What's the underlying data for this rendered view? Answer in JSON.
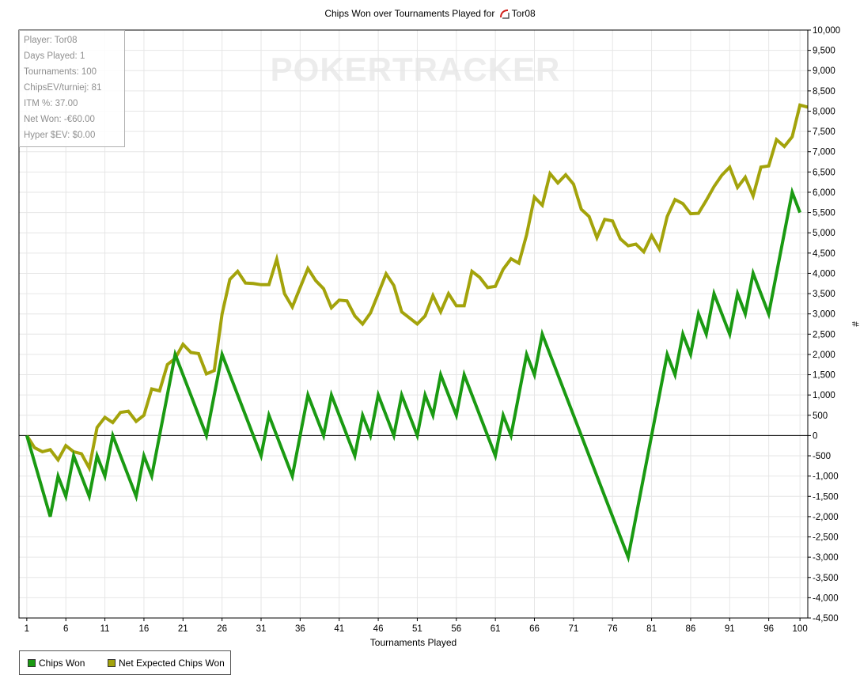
{
  "title": "Chips Won over Tournaments Played for",
  "player_name": "Tor08",
  "watermark": "POKERTRACKER",
  "stats": [
    "Player: Tor08",
    "Days Played: 1",
    "Tournaments: 100",
    "ChipsEV/turniej: 81",
    "ITM %: 37.00",
    "Net Won: -€60.00",
    "Hyper $EV: $0.00"
  ],
  "colors": {
    "chips_won": "#1a9a12",
    "net_expected": "#a3a30b",
    "grid": "#e6e6e6",
    "zero_line": "#000000"
  },
  "chart_data": {
    "type": "line",
    "title": "Chips Won over Tournaments Played for Tor08",
    "xlabel": "Tournaments Played",
    "ylabel": "#",
    "xlim": [
      0,
      101
    ],
    "ylim": [
      -4500,
      10000
    ],
    "x_ticks": [
      1,
      6,
      11,
      16,
      21,
      26,
      31,
      36,
      41,
      46,
      51,
      56,
      61,
      66,
      71,
      76,
      81,
      86,
      91,
      96,
      100
    ],
    "y_ticks": [
      10000,
      9500,
      9000,
      8500,
      8000,
      7500,
      7000,
      6500,
      6000,
      5500,
      5000,
      4500,
      4000,
      3500,
      3000,
      2500,
      2000,
      1500,
      1000,
      500,
      0,
      -500,
      -1000,
      -1500,
      -2000,
      -2500,
      -3000,
      -3500,
      -4000,
      -4500
    ],
    "y_tick_labels": [
      "10,000",
      "9,500",
      "9,000",
      "8,500",
      "8,000",
      "7,500",
      "7,000",
      "6,500",
      "6,000",
      "5,500",
      "5,000",
      "4,500",
      "4,000",
      "3,500",
      "3,000",
      "2,500",
      "2,000",
      "1,500",
      "1,000",
      "500",
      "0",
      "-500",
      "-1,000",
      "-1,500",
      "-2,000",
      "-2,500",
      "-3,000",
      "-3,500",
      "-4,000",
      "-4,500"
    ],
    "grid": true,
    "legend_position": "bottom-left",
    "series": [
      {
        "name": "Chips Won",
        "color": "#1a9a12",
        "points": [
          [
            1,
            0
          ],
          [
            4,
            -2000
          ],
          [
            5,
            -1000
          ],
          [
            6,
            -1500
          ],
          [
            7,
            -500
          ],
          [
            9,
            -1500
          ],
          [
            10,
            -500
          ],
          [
            11,
            -1000
          ],
          [
            12,
            0
          ],
          [
            15,
            -1500
          ],
          [
            16,
            -500
          ],
          [
            17,
            -1000
          ],
          [
            20,
            2000
          ],
          [
            24,
            0
          ],
          [
            26,
            2000
          ],
          [
            31,
            -500
          ],
          [
            32,
            500
          ],
          [
            35,
            -1000
          ],
          [
            37,
            1000
          ],
          [
            39,
            0
          ],
          [
            40,
            1000
          ],
          [
            43,
            -500
          ],
          [
            44,
            500
          ],
          [
            45,
            0
          ],
          [
            46,
            1000
          ],
          [
            48,
            0
          ],
          [
            49,
            1000
          ],
          [
            51,
            0
          ],
          [
            52,
            1000
          ],
          [
            53,
            500
          ],
          [
            54,
            1500
          ],
          [
            56,
            500
          ],
          [
            57,
            1500
          ],
          [
            61,
            -500
          ],
          [
            62,
            500
          ],
          [
            63,
            0
          ],
          [
            65,
            2000
          ],
          [
            66,
            1500
          ],
          [
            67,
            2500
          ],
          [
            78,
            -3000
          ],
          [
            83,
            2000
          ],
          [
            84,
            1500
          ],
          [
            85,
            2500
          ],
          [
            86,
            2000
          ],
          [
            87,
            3000
          ],
          [
            88,
            2500
          ],
          [
            89,
            3500
          ],
          [
            91,
            2500
          ],
          [
            92,
            3500
          ],
          [
            93,
            3000
          ],
          [
            94,
            4000
          ],
          [
            96,
            3000
          ],
          [
            99,
            6000
          ],
          [
            100,
            5500
          ]
        ]
      },
      {
        "name": "Net Expected Chips Won",
        "color": "#a3a30b",
        "points": [
          [
            1,
            0
          ],
          [
            2,
            -300
          ],
          [
            3,
            -400
          ],
          [
            4,
            -350
          ],
          [
            5,
            -600
          ],
          [
            6,
            -250
          ],
          [
            7,
            -400
          ],
          [
            8,
            -450
          ],
          [
            9,
            -800
          ],
          [
            10,
            200
          ],
          [
            11,
            450
          ],
          [
            12,
            320
          ],
          [
            13,
            570
          ],
          [
            14,
            600
          ],
          [
            15,
            350
          ],
          [
            16,
            500
          ],
          [
            17,
            1150
          ],
          [
            18,
            1100
          ],
          [
            19,
            1750
          ],
          [
            20,
            1900
          ],
          [
            21,
            2250
          ],
          [
            22,
            2050
          ],
          [
            23,
            2020
          ],
          [
            24,
            1520
          ],
          [
            25,
            1600
          ],
          [
            26,
            3000
          ],
          [
            27,
            3850
          ],
          [
            28,
            4050
          ],
          [
            29,
            3760
          ],
          [
            30,
            3750
          ],
          [
            31,
            3720
          ],
          [
            32,
            3720
          ],
          [
            33,
            4350
          ],
          [
            34,
            3500
          ],
          [
            35,
            3170
          ],
          [
            36,
            3650
          ],
          [
            37,
            4120
          ],
          [
            38,
            3820
          ],
          [
            39,
            3620
          ],
          [
            40,
            3150
          ],
          [
            41,
            3340
          ],
          [
            42,
            3320
          ],
          [
            43,
            2950
          ],
          [
            44,
            2750
          ],
          [
            45,
            3020
          ],
          [
            46,
            3500
          ],
          [
            47,
            3990
          ],
          [
            48,
            3700
          ],
          [
            49,
            3050
          ],
          [
            50,
            2900
          ],
          [
            51,
            2750
          ],
          [
            52,
            2950
          ],
          [
            53,
            3450
          ],
          [
            54,
            3050
          ],
          [
            55,
            3500
          ],
          [
            56,
            3200
          ],
          [
            57,
            3200
          ],
          [
            58,
            4050
          ],
          [
            59,
            3900
          ],
          [
            60,
            3650
          ],
          [
            61,
            3680
          ],
          [
            62,
            4100
          ],
          [
            63,
            4360
          ],
          [
            64,
            4250
          ],
          [
            65,
            4950
          ],
          [
            66,
            5880
          ],
          [
            67,
            5680
          ],
          [
            68,
            6460
          ],
          [
            69,
            6230
          ],
          [
            70,
            6430
          ],
          [
            71,
            6200
          ],
          [
            72,
            5580
          ],
          [
            73,
            5400
          ],
          [
            74,
            4880
          ],
          [
            75,
            5330
          ],
          [
            76,
            5290
          ],
          [
            77,
            4850
          ],
          [
            78,
            4680
          ],
          [
            79,
            4720
          ],
          [
            80,
            4530
          ],
          [
            81,
            4930
          ],
          [
            82,
            4600
          ],
          [
            83,
            5400
          ],
          [
            84,
            5820
          ],
          [
            85,
            5720
          ],
          [
            86,
            5470
          ],
          [
            87,
            5480
          ],
          [
            88,
            5800
          ],
          [
            89,
            6140
          ],
          [
            90,
            6420
          ],
          [
            91,
            6620
          ],
          [
            92,
            6120
          ],
          [
            93,
            6370
          ],
          [
            94,
            5910
          ],
          [
            95,
            6620
          ],
          [
            96,
            6650
          ],
          [
            97,
            7300
          ],
          [
            98,
            7130
          ],
          [
            99,
            7370
          ],
          [
            100,
            8150
          ],
          [
            101,
            8100
          ]
        ]
      }
    ]
  }
}
